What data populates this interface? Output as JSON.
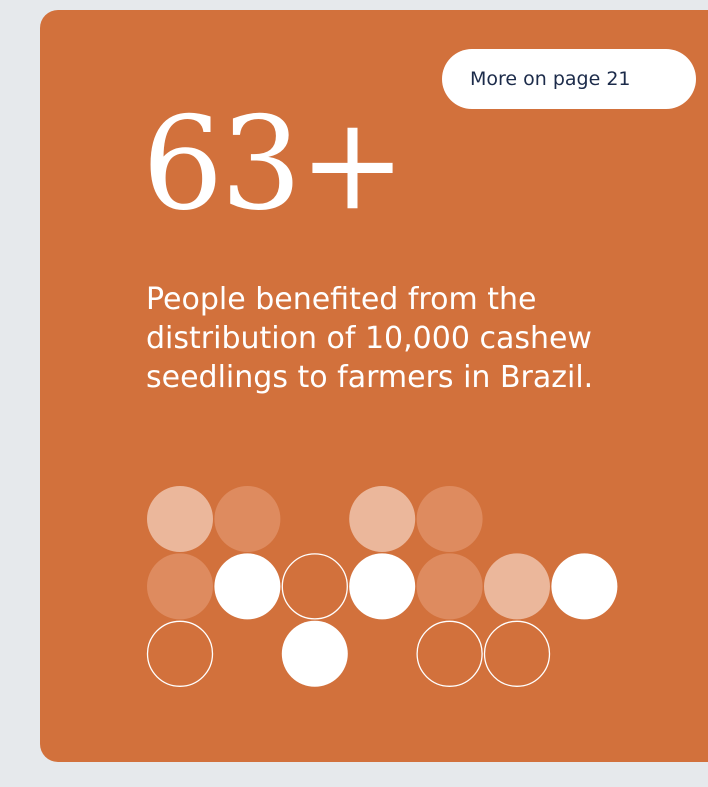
{
  "colors": {
    "background": "#e6e9ec",
    "card": "#d2713c",
    "pill_text": "#1c2b4a",
    "dot_light": "#ebb79b",
    "dot_mid": "#de8b5f",
    "dot_solid": "#ffffff",
    "dot_outline": "#ffffff"
  },
  "link": {
    "label": "More on page 21"
  },
  "stat": {
    "value": "63+",
    "description": "People benefited from the distribution of 10,000 cashew seedlings to farmers in Brazil."
  },
  "decoration": {
    "dot_rows": [
      [
        "light",
        "mid",
        null,
        "light",
        "mid",
        null,
        null
      ],
      [
        "mid",
        "solid",
        "outline",
        "solid",
        "mid",
        "light",
        "solid"
      ],
      [
        "outline",
        null,
        "solid",
        null,
        "outline",
        "outline",
        null
      ]
    ]
  }
}
